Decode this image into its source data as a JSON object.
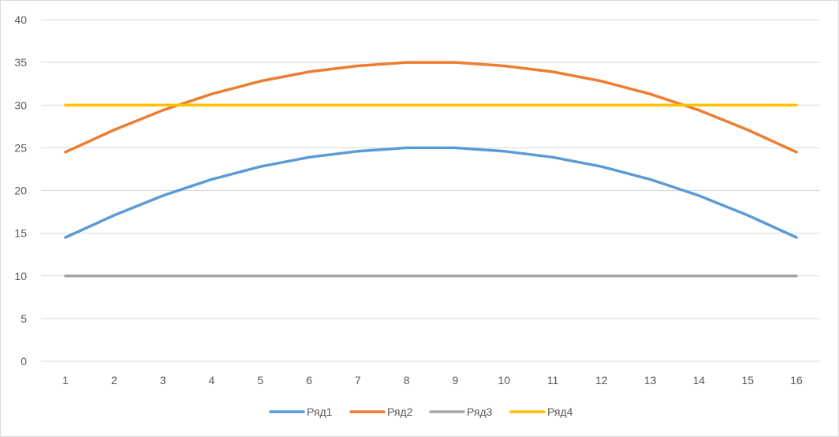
{
  "chart_data": {
    "type": "line",
    "title": "",
    "xlabel": "",
    "ylabel": "",
    "x": [
      1,
      2,
      3,
      4,
      5,
      6,
      7,
      8,
      9,
      10,
      11,
      12,
      13,
      14,
      15,
      16
    ],
    "ylim": [
      0,
      40
    ],
    "yticks": [
      0,
      5,
      10,
      15,
      20,
      25,
      30,
      35,
      40
    ],
    "grid": true,
    "legend_position": "bottom",
    "series": [
      {
        "name": "Ряд1",
        "color": "#5b9bd5",
        "values": [
          14.5,
          17.1,
          19.4,
          21.3,
          22.8,
          23.9,
          24.6,
          25.0,
          25.0,
          24.6,
          23.9,
          22.8,
          21.3,
          19.4,
          17.1,
          14.5
        ]
      },
      {
        "name": "Ряд2",
        "color": "#ed7d31",
        "values": [
          24.5,
          27.1,
          29.4,
          31.3,
          32.8,
          33.9,
          34.6,
          35.0,
          35.0,
          34.6,
          33.9,
          32.8,
          31.3,
          29.4,
          27.1,
          24.5
        ]
      },
      {
        "name": "Ряд3",
        "color": "#a5a5a5",
        "values": [
          10,
          10,
          10,
          10,
          10,
          10,
          10,
          10,
          10,
          10,
          10,
          10,
          10,
          10,
          10,
          10
        ]
      },
      {
        "name": "Ряд4",
        "color": "#ffc000",
        "values": [
          30,
          30,
          30,
          30,
          30,
          30,
          30,
          30,
          30,
          30,
          30,
          30,
          30,
          30,
          30,
          30
        ]
      }
    ]
  }
}
